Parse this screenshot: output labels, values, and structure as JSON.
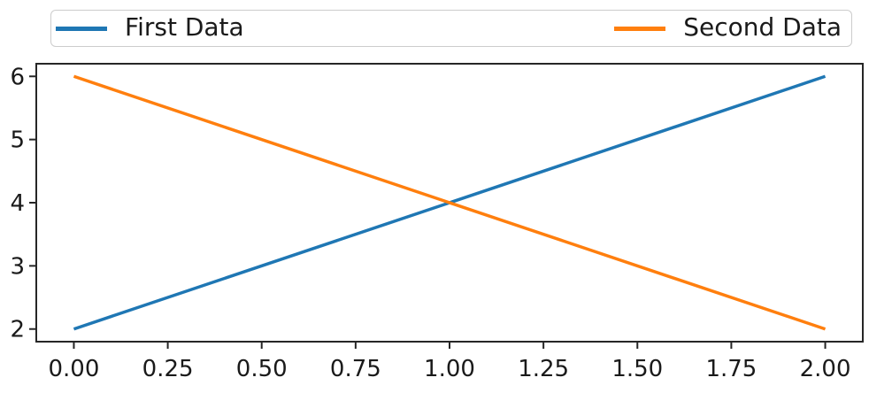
{
  "figure": {
    "background": "#ffffff",
    "text_color": "#1a1a1a",
    "axis_color": "#262626"
  },
  "chart_data": {
    "type": "line",
    "title": "",
    "xlabel": "",
    "ylabel": "",
    "grid": false,
    "xlim": [
      -0.1,
      2.1
    ],
    "ylim": [
      1.8,
      6.2
    ],
    "xticks": {
      "values": [
        0,
        0.25,
        0.5,
        0.75,
        1.0,
        1.25,
        1.5,
        1.75,
        2.0
      ],
      "labels": [
        "0.00",
        "0.25",
        "0.50",
        "0.75",
        "1.00",
        "1.25",
        "1.50",
        "1.75",
        "2.00"
      ]
    },
    "yticks": {
      "values": [
        2,
        3,
        4,
        5,
        6
      ],
      "labels": [
        "2",
        "3",
        "4",
        "5",
        "6"
      ]
    },
    "series": [
      {
        "name": "First Data",
        "color": "#1f77b4",
        "x": [
          0,
          2
        ],
        "y": [
          2,
          6
        ]
      },
      {
        "name": "Second Data",
        "color": "#ff7f0e",
        "x": [
          0,
          2
        ],
        "y": [
          6,
          2
        ]
      }
    ],
    "legend": {
      "position": "top",
      "mode": "expand",
      "ncol": 2,
      "entries": [
        "First Data",
        "Second Data"
      ]
    }
  }
}
